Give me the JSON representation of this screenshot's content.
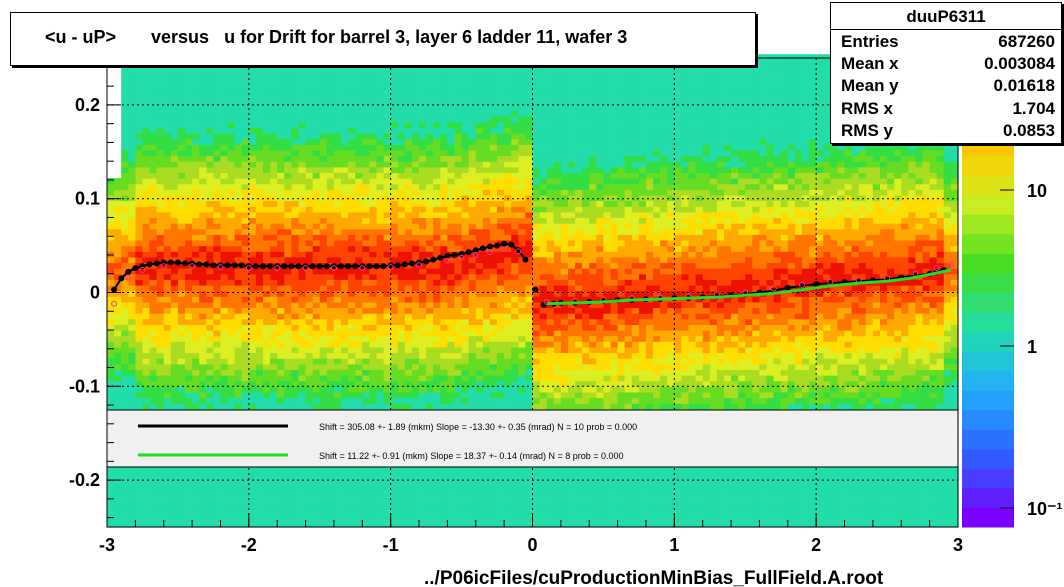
{
  "title": "<u - uP>       versus   u for Drift for barrel 3, layer 6 ladder 11, wafer 3",
  "footer": "../P06icFiles/cuProductionMinBias_FullField.A.root",
  "stats": {
    "name": "duuP6311",
    "rows": [
      {
        "label": "Entries",
        "value": "687260"
      },
      {
        "label": "Mean x",
        "value": "0.003084"
      },
      {
        "label": "Mean y",
        "value": "0.01618"
      },
      {
        "label": "RMS x",
        "value": "1.704"
      },
      {
        "label": "RMS y",
        "value": "0.0853"
      }
    ]
  },
  "chart_data": {
    "type": "heatmap",
    "xlim": [
      -3,
      3
    ],
    "ylim": [
      -0.25,
      0.25
    ],
    "x_ticks": [
      "-3",
      "-2",
      "-1",
      "0",
      "1",
      "2",
      "3"
    ],
    "y_ticks": [
      "0.2",
      "0.1",
      "0",
      "-0.1",
      "-0.2"
    ],
    "z_scale": "log",
    "z_ticks": [
      "10",
      "1",
      "10⁻¹"
    ],
    "grid": true,
    "legend": {
      "entries": [
        {
          "color": "#000000",
          "text": "Shift =   305.08 +- 1.89 (mkm) Slope =   -13.30 +- 0.35 (mrad)  N = 10 prob = 0.000"
        },
        {
          "color": "#22dd22",
          "text": "Shift =    11.22 +- 0.91 (mkm) Slope =    18.37 +- 0.14 (mrad)  N = 8 prob = 0.000"
        }
      ]
    },
    "series": [
      {
        "color": "#000000",
        "x": [
          -2.95,
          -2.9,
          -2.85,
          -2.8,
          -2.75,
          -2.7,
          -2.65,
          -2.6,
          -2.55,
          -2.5,
          -2.45,
          -2.4,
          -2.35,
          -2.3,
          -2.25,
          -2.2,
          -2.15,
          -2.1,
          -2.05,
          -2.0,
          -1.95,
          -1.9,
          -1.85,
          -1.8,
          -1.75,
          -1.7,
          -1.65,
          -1.6,
          -1.55,
          -1.5,
          -1.45,
          -1.4,
          -1.35,
          -1.3,
          -1.25,
          -1.2,
          -1.15,
          -1.1,
          -1.05,
          -1.0,
          -0.95,
          -0.9,
          -0.85,
          -0.8,
          -0.75,
          -0.7,
          -0.65,
          -0.6,
          -0.55,
          -0.5,
          -0.45,
          -0.4,
          -0.35,
          -0.3,
          -0.25,
          -0.2,
          -0.15,
          -0.1,
          -0.05,
          0.02,
          0.08,
          0.15,
          0.2,
          0.3,
          0.4,
          0.5,
          0.6,
          0.7,
          0.8,
          0.9,
          1.0,
          1.1,
          1.2,
          1.3,
          1.4,
          1.5,
          1.6,
          1.7,
          1.8,
          1.9,
          2.0,
          2.1,
          2.2,
          2.3,
          2.4,
          2.5,
          2.6,
          2.7,
          2.8,
          2.85,
          2.9
        ],
        "y": [
          0.003,
          0.015,
          0.022,
          0.026,
          0.028,
          0.03,
          0.031,
          0.032,
          0.032,
          0.032,
          0.031,
          0.031,
          0.03,
          0.03,
          0.029,
          0.029,
          0.029,
          0.029,
          0.029,
          0.028,
          0.028,
          0.028,
          0.028,
          0.028,
          0.028,
          0.028,
          0.028,
          0.028,
          0.028,
          0.028,
          0.028,
          0.028,
          0.028,
          0.028,
          0.028,
          0.028,
          0.028,
          0.028,
          0.028,
          0.029,
          0.029,
          0.03,
          0.031,
          0.032,
          0.033,
          0.035,
          0.037,
          0.039,
          0.04,
          0.041,
          0.043,
          0.045,
          0.047,
          0.049,
          0.05,
          0.052,
          0.051,
          0.045,
          0.035,
          0.003,
          -0.013,
          -0.012,
          -0.011,
          -0.011,
          -0.01,
          -0.009,
          -0.008,
          -0.008,
          -0.007,
          -0.007,
          -0.006,
          -0.006,
          -0.005,
          -0.004,
          -0.003,
          -0.002,
          0.0,
          0.002,
          0.005,
          0.007,
          0.009,
          0.01,
          0.011,
          0.012,
          0.013,
          0.014,
          0.016,
          0.018,
          0.02,
          0.022,
          0.024
        ]
      },
      {
        "color": "#ff3399",
        "x": [
          -2.95,
          -2.85,
          -2.75,
          -2.6,
          -2.4,
          -2.2,
          -2.0,
          -1.8,
          -1.6,
          -1.4,
          -1.2,
          -1.0,
          -0.8,
          -0.6,
          -0.5,
          -0.4,
          -0.3,
          -0.2,
          -0.1,
          0.1,
          0.3,
          0.5,
          0.7,
          0.9,
          1.1,
          1.3,
          1.5,
          1.7,
          1.9,
          2.1,
          2.3,
          2.5,
          2.7,
          2.85,
          2.95
        ],
        "y": [
          -0.012,
          0.016,
          0.024,
          0.028,
          0.028,
          0.027,
          0.026,
          0.026,
          0.026,
          0.026,
          0.026,
          0.027,
          0.029,
          0.034,
          0.037,
          0.04,
          0.043,
          0.046,
          0.044,
          -0.01,
          -0.009,
          -0.008,
          -0.006,
          -0.005,
          -0.004,
          -0.002,
          0.0,
          0.004,
          0.008,
          0.011,
          0.013,
          0.015,
          0.02,
          0.026,
          0.03
        ]
      },
      {
        "color": "#22dd22",
        "x": [
          0.1,
          0.3,
          0.5,
          0.7,
          0.9,
          1.1,
          1.3,
          1.5,
          1.7,
          1.9,
          2.1,
          2.3,
          2.5,
          2.7,
          2.95
        ],
        "y": [
          -0.012,
          -0.011,
          -0.01,
          -0.008,
          -0.007,
          -0.006,
          -0.005,
          -0.003,
          -0.001,
          0.003,
          0.007,
          0.01,
          0.012,
          0.016,
          0.024
        ]
      }
    ]
  }
}
